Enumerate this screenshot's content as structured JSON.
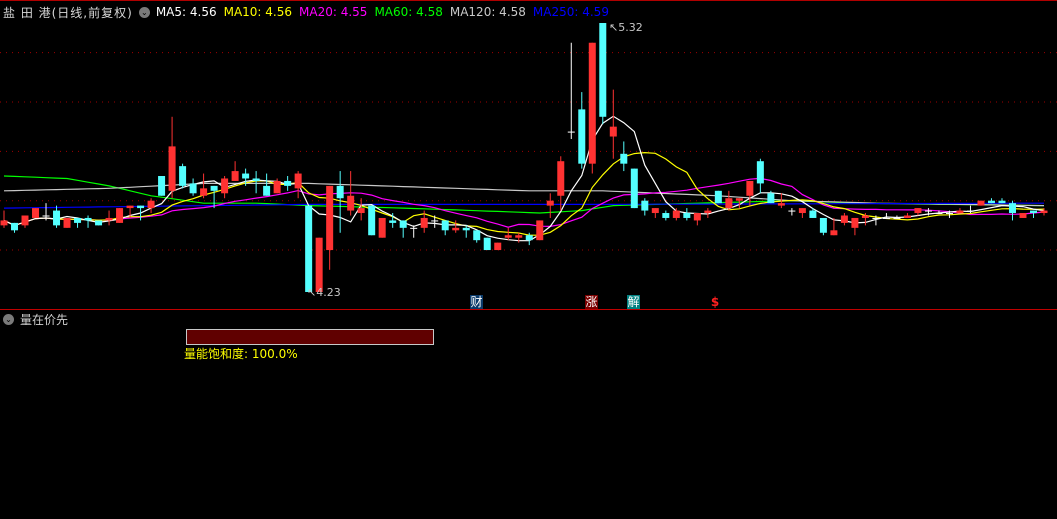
{
  "header": {
    "title": "盐 田 港(日线,前复权)",
    "ma_items": [
      {
        "label": "MA5: 4.56",
        "color": "#ffffff"
      },
      {
        "label": "MA10: 4.56",
        "color": "#ffff00"
      },
      {
        "label": "MA20: 4.55",
        "color": "#ff00ff"
      },
      {
        "label": "MA60: 4.58",
        "color": "#00ff00"
      },
      {
        "label": "MA120: 4.58",
        "color": "#c8c8c8"
      },
      {
        "label": "MA250: 4.59",
        "color": "#0000ff"
      }
    ]
  },
  "price_labels": {
    "high": "5.32",
    "low": "4.23"
  },
  "event_markers": [
    {
      "text": "财",
      "bg": "#0a3a6a",
      "color": "#ffffff"
    },
    {
      "text": "涨",
      "bg": "#7a0000",
      "color": "#ffffff"
    },
    {
      "text": "解",
      "bg": "#008080",
      "color": "#ffffff"
    },
    {
      "text": "$",
      "bg": "transparent",
      "color": "#ff2020"
    }
  ],
  "sub_panel": {
    "title": "量在价先",
    "saturation_label": "量能饱和度: 100.0%",
    "saturation_value": 100.0
  },
  "colors": {
    "up": "#ff3232",
    "down": "#54ffff",
    "flat": "#ffffff",
    "grid": "#a00000"
  },
  "chart_data": {
    "type": "candlestick",
    "ylim": [
      4.23,
      5.32
    ],
    "grid_levels": [
      4.4,
      4.6,
      4.8,
      5.0,
      5.2
    ],
    "ohlc": [
      [
        4.5,
        4.56,
        4.49,
        4.52
      ],
      [
        4.51,
        4.51,
        4.47,
        4.48
      ],
      [
        4.5,
        4.54,
        4.49,
        4.54
      ],
      [
        4.53,
        4.57,
        4.53,
        4.57
      ],
      [
        4.54,
        4.59,
        4.52,
        4.54
      ],
      [
        4.56,
        4.58,
        4.49,
        4.5
      ],
      [
        4.49,
        4.53,
        4.49,
        4.53
      ],
      [
        4.53,
        4.53,
        4.49,
        4.51
      ],
      [
        4.53,
        4.54,
        4.49,
        4.52
      ],
      [
        4.52,
        4.52,
        4.5,
        4.5
      ],
      [
        4.52,
        4.56,
        4.5,
        4.53
      ],
      [
        4.51,
        4.57,
        4.51,
        4.57
      ],
      [
        4.57,
        4.58,
        4.53,
        4.58
      ],
      [
        4.58,
        4.58,
        4.52,
        4.57
      ],
      [
        4.57,
        4.61,
        4.55,
        4.6
      ],
      [
        4.7,
        4.7,
        4.62,
        4.62
      ],
      [
        4.64,
        4.94,
        4.61,
        4.82
      ],
      [
        4.74,
        4.75,
        4.65,
        4.66
      ],
      [
        4.67,
        4.69,
        4.62,
        4.63
      ],
      [
        4.62,
        4.71,
        4.61,
        4.65
      ],
      [
        4.66,
        4.66,
        4.57,
        4.64
      ],
      [
        4.63,
        4.7,
        4.61,
        4.69
      ],
      [
        4.68,
        4.76,
        4.68,
        4.72
      ],
      [
        4.71,
        4.73,
        4.66,
        4.69
      ],
      [
        4.69,
        4.72,
        4.63,
        4.68
      ],
      [
        4.66,
        4.71,
        4.62,
        4.62
      ],
      [
        4.63,
        4.69,
        4.63,
        4.68
      ],
      [
        4.68,
        4.7,
        4.64,
        4.66
      ],
      [
        4.65,
        4.72,
        4.61,
        4.71
      ],
      [
        4.58,
        4.58,
        4.23,
        4.23
      ],
      [
        4.23,
        4.45,
        4.23,
        4.45
      ],
      [
        4.4,
        4.66,
        4.32,
        4.66
      ],
      [
        4.66,
        4.72,
        4.47,
        4.61
      ],
      [
        4.56,
        4.72,
        4.54,
        4.62
      ],
      [
        4.55,
        4.61,
        4.52,
        4.57
      ],
      [
        4.58,
        4.58,
        4.46,
        4.46
      ],
      [
        4.45,
        4.53,
        4.45,
        4.53
      ],
      [
        4.52,
        4.55,
        4.49,
        4.51
      ],
      [
        4.52,
        4.52,
        4.45,
        4.49
      ],
      [
        4.49,
        4.5,
        4.45,
        4.49
      ],
      [
        4.49,
        4.56,
        4.47,
        4.53
      ],
      [
        4.52,
        4.54,
        4.49,
        4.52
      ],
      [
        4.52,
        4.52,
        4.46,
        4.48
      ],
      [
        4.48,
        4.52,
        4.47,
        4.49
      ],
      [
        4.49,
        4.5,
        4.45,
        4.48
      ],
      [
        4.48,
        4.48,
        4.43,
        4.44
      ],
      [
        4.45,
        4.45,
        4.4,
        4.4
      ],
      [
        4.4,
        4.43,
        4.4,
        4.43
      ],
      [
        4.45,
        4.49,
        4.44,
        4.46
      ],
      [
        4.45,
        4.47,
        4.43,
        4.46
      ],
      [
        4.46,
        4.47,
        4.42,
        4.44
      ],
      [
        4.44,
        4.52,
        4.44,
        4.52
      ],
      [
        4.58,
        4.63,
        4.53,
        4.6
      ],
      [
        4.62,
        4.78,
        4.56,
        4.76
      ],
      [
        4.88,
        5.24,
        4.85,
        4.88
      ],
      [
        4.97,
        5.04,
        4.73,
        4.75
      ],
      [
        4.75,
        5.24,
        4.71,
        5.24
      ],
      [
        5.32,
        5.32,
        4.91,
        4.94
      ],
      [
        4.86,
        5.05,
        4.77,
        4.9
      ],
      [
        4.79,
        4.84,
        4.72,
        4.75
      ],
      [
        4.73,
        4.73,
        4.57,
        4.57
      ],
      [
        4.6,
        4.61,
        4.54,
        4.56
      ],
      [
        4.55,
        4.57,
        4.53,
        4.57
      ],
      [
        4.55,
        4.56,
        4.52,
        4.53
      ],
      [
        4.53,
        4.57,
        4.52,
        4.56
      ],
      [
        4.55,
        4.57,
        4.52,
        4.53
      ],
      [
        4.52,
        4.55,
        4.5,
        4.55
      ],
      [
        4.55,
        4.57,
        4.53,
        4.56
      ],
      [
        4.64,
        4.64,
        4.59,
        4.59
      ],
      [
        4.57,
        4.64,
        4.56,
        4.61
      ],
      [
        4.6,
        4.61,
        4.57,
        4.61
      ],
      [
        4.62,
        4.68,
        4.58,
        4.68
      ],
      [
        4.76,
        4.77,
        4.63,
        4.67
      ],
      [
        4.63,
        4.64,
        4.59,
        4.59
      ],
      [
        4.58,
        4.63,
        4.57,
        4.59
      ],
      [
        4.56,
        4.57,
        4.54,
        4.56
      ],
      [
        4.55,
        4.57,
        4.53,
        4.57
      ],
      [
        4.56,
        4.57,
        4.53,
        4.53
      ],
      [
        4.53,
        4.53,
        4.46,
        4.47
      ],
      [
        4.46,
        4.53,
        4.46,
        4.48
      ],
      [
        4.51,
        4.55,
        4.5,
        4.54
      ],
      [
        4.49,
        4.53,
        4.46,
        4.53
      ],
      [
        4.53,
        4.55,
        4.5,
        4.54
      ],
      [
        4.53,
        4.54,
        4.5,
        4.53
      ],
      [
        4.53,
        4.55,
        4.53,
        4.53
      ],
      [
        4.53,
        4.54,
        4.53,
        4.53
      ],
      [
        4.53,
        4.55,
        4.53,
        4.54
      ],
      [
        4.55,
        4.57,
        4.54,
        4.57
      ],
      [
        4.56,
        4.57,
        4.54,
        4.56
      ],
      [
        4.55,
        4.56,
        4.55,
        4.55
      ],
      [
        4.55,
        4.56,
        4.53,
        4.55
      ],
      [
        4.55,
        4.57,
        4.55,
        4.56
      ],
      [
        4.56,
        4.58,
        4.55,
        4.56
      ],
      [
        4.58,
        4.6,
        4.58,
        4.6
      ],
      [
        4.6,
        4.61,
        4.59,
        4.59
      ],
      [
        4.6,
        4.61,
        4.59,
        4.59
      ],
      [
        4.59,
        4.6,
        4.52,
        4.55
      ],
      [
        4.53,
        4.55,
        4.53,
        4.55
      ],
      [
        4.56,
        4.56,
        4.53,
        4.55
      ],
      [
        4.55,
        4.57,
        4.54,
        4.56
      ]
    ],
    "long_ma": [
      {
        "name": "MA60",
        "color": "#00ff00",
        "points": [
          [
            0,
            4.7
          ],
          [
            6,
            4.69
          ],
          [
            10,
            4.66
          ],
          [
            14,
            4.62
          ],
          [
            19,
            4.59
          ],
          [
            24,
            4.59
          ],
          [
            29,
            4.58
          ],
          [
            38,
            4.57
          ],
          [
            48,
            4.555
          ],
          [
            51,
            4.55
          ],
          [
            55,
            4.56
          ],
          [
            58,
            4.58
          ],
          [
            66,
            4.59
          ],
          [
            75,
            4.6
          ],
          [
            81,
            4.59
          ],
          [
            90,
            4.585
          ],
          [
            99,
            4.58
          ]
        ]
      },
      {
        "name": "MA120",
        "color": "#c8c8c8",
        "points": [
          [
            0,
            4.64
          ],
          [
            10,
            4.65
          ],
          [
            19,
            4.67
          ],
          [
            29,
            4.67
          ],
          [
            36,
            4.66
          ],
          [
            50,
            4.64
          ],
          [
            57,
            4.64
          ],
          [
            68,
            4.62
          ],
          [
            75,
            4.6
          ],
          [
            83,
            4.59
          ],
          [
            99,
            4.58
          ]
        ]
      },
      {
        "name": "MA250",
        "color": "#0000ff",
        "points": [
          [
            0,
            4.57
          ],
          [
            29,
            4.585
          ],
          [
            57,
            4.585
          ],
          [
            99,
            4.59
          ]
        ]
      }
    ]
  }
}
